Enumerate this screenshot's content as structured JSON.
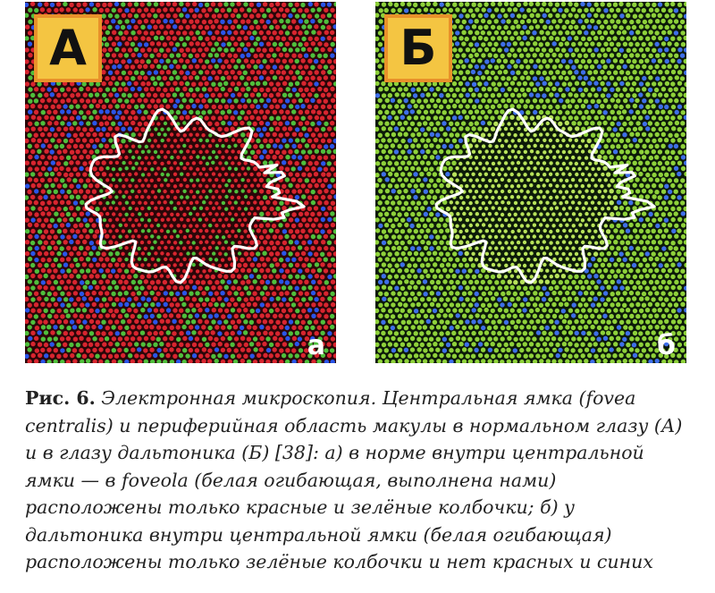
{
  "figure": {
    "panel_a": {
      "badge": "А",
      "sublabel": "а",
      "colors": {
        "background": "#2a0608",
        "red": "#d8252f",
        "green": "#4fbf3c",
        "blue": "#2a55e8"
      }
    },
    "panel_b": {
      "badge": "Б",
      "sublabel": "б",
      "colors": {
        "background": "#0c1a08",
        "green": "#8ed13a",
        "green_center": "#b7e25a",
        "blue": "#3f6fe8"
      }
    },
    "outline_color": "#ffffff",
    "badge_colors": {
      "fill": "#f4c542",
      "border": "#e8912a"
    }
  },
  "caption": {
    "lead": "Рис. 6.",
    "text": " Электронная микроскопия. Центральная ямка (fovea centralis) и периферийная область макулы в нормальном глазу (А) и в глазу дальтоника (Б) [38]: а) в норме внутри центральной ямки — в foveola (белая огибающая, выполнена нами) расположены только красные и зелёные колбочки; б) у дальтоника внутри центральной ямки (белая огибающая) расположены только зелёные колбочки и нет красных и синих"
  }
}
